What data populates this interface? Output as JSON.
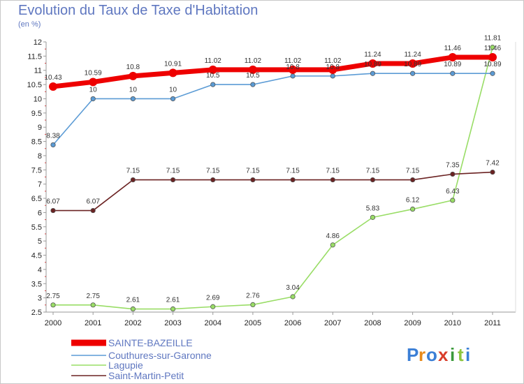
{
  "header": {
    "title": "Evolution du Taux de Taxe d'Habitation",
    "subtitle": "(en %)"
  },
  "logo": {
    "letters": [
      "P",
      "r",
      "o",
      "x",
      "i",
      "t",
      "i"
    ],
    "colors": [
      "#3b7fd6",
      "#e88a1a",
      "#3b7fd6",
      "#d93d2a",
      "#3b9a3b",
      "#8ec63f",
      "#3b7fd6"
    ]
  },
  "chart_data": {
    "type": "line",
    "title": "Evolution du Taux de Taxe d'Habitation",
    "subtitle": "(en %)",
    "xlabel": "",
    "ylabel": "",
    "x": [
      "2000",
      "2001",
      "2002",
      "2003",
      "2004",
      "2005",
      "2006",
      "2007",
      "2008",
      "2009",
      "2010",
      "2011"
    ],
    "ylim": [
      2.5,
      12
    ],
    "yticks": [
      "2.5",
      "3",
      "3.5",
      "4",
      "4.5",
      "5",
      "5.5",
      "6",
      "6.5",
      "7",
      "7.5",
      "8",
      "8.5",
      "9",
      "9.5",
      "10",
      "10.5",
      "11",
      "11.5",
      "12"
    ],
    "grid": false,
    "legend": "bottom-left",
    "series": [
      {
        "name": "SAINTE-BAZEILLE",
        "color": "#ee0000",
        "values": [
          10.43,
          10.59,
          10.8,
          10.91,
          11.02,
          11.02,
          11.02,
          11.02,
          11.24,
          11.24,
          11.46,
          11.46
        ],
        "labels": [
          "10.43",
          "10.59",
          "10.8",
          "10.91",
          "11.02",
          "11.02",
          "11.02",
          "11.02",
          "11.24",
          "11.24",
          "11.46",
          "11.46"
        ]
      },
      {
        "name": "Couthures-sur-Garonne",
        "color": "#5b9bd5",
        "values": [
          8.38,
          10,
          10,
          10,
          10.5,
          10.5,
          10.8,
          10.8,
          10.89,
          10.89,
          10.89,
          10.89
        ],
        "labels": [
          "8.38",
          "10",
          "10",
          "10",
          "10.5",
          "10.5",
          "10.8",
          "10.8",
          "10.89",
          "10.89",
          "10.89",
          "10.89"
        ]
      },
      {
        "name": "Lagupie",
        "color": "#99dd66",
        "values": [
          2.75,
          2.75,
          2.61,
          2.61,
          2.69,
          2.76,
          3.04,
          4.86,
          5.83,
          6.12,
          6.43,
          11.81
        ],
        "labels": [
          "2.75",
          "2.75",
          "2.61",
          "2.61",
          "2.69",
          "2.76",
          "3.04",
          "4.86",
          "5.83",
          "6.12",
          "6.43",
          "11.81"
        ]
      },
      {
        "name": "Saint-Martin-Petit",
        "color": "#6b2222",
        "values": [
          6.07,
          6.07,
          7.15,
          7.15,
          7.15,
          7.15,
          7.15,
          7.15,
          7.15,
          7.15,
          7.35,
          7.42
        ],
        "labels": [
          "6.07",
          "6.07",
          "7.15",
          "7.15",
          "7.15",
          "7.15",
          "7.15",
          "7.15",
          "7.15",
          "7.15",
          "7.35",
          "7.42"
        ]
      }
    ]
  }
}
